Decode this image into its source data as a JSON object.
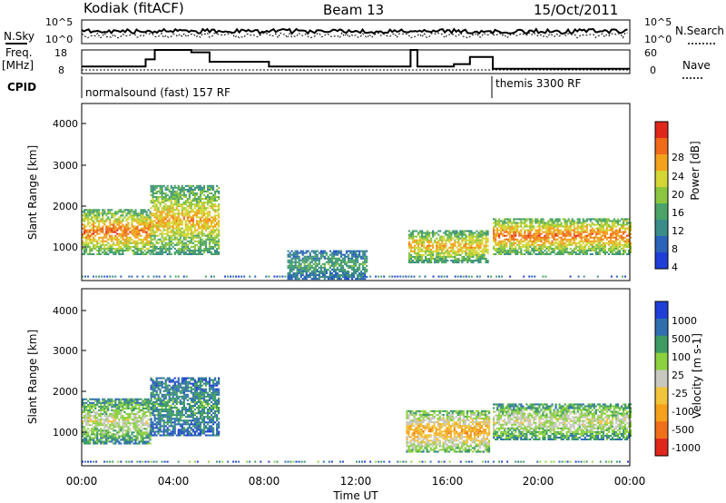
{
  "header": {
    "station": "Kodiak (fitACF)",
    "beam": "Beam 13",
    "date": "15/Oct/2011"
  },
  "nsky_panel": {
    "left_label": "N.Sky",
    "right_label": "N.Search",
    "left_ticks": [
      "10^5",
      "10^0"
    ],
    "right_ticks": [
      "10^5",
      "10^0"
    ]
  },
  "freq_panel": {
    "left_label_top": "Freq.",
    "left_label_bottom": "[MHz]",
    "left_ticks": [
      "18",
      "8"
    ],
    "right_label": "Nave",
    "right_ticks": [
      "60",
      "0"
    ]
  },
  "cpid": {
    "label": "CPID",
    "segment1": "normalsound (fast) 157 RF",
    "segment2": "themis 3300 RF"
  },
  "x_axis": {
    "title": "Time UT",
    "ticks": [
      "00:00",
      "04:00",
      "08:00",
      "12:00",
      "16:00",
      "20:00",
      "00:00"
    ]
  },
  "power_panel": {
    "ylabel": "Slant Range [km]",
    "yticks": [
      "4000",
      "3000",
      "2000",
      "1000"
    ],
    "colorbar_title": "Power [dB]",
    "colorbar_ticks": [
      "28",
      "24",
      "20",
      "16",
      "12",
      "8",
      "4"
    ],
    "colors": [
      "#1f3fd6",
      "#2a63b8",
      "#3a8c8a",
      "#4aa367",
      "#8cc63f",
      "#d4d635",
      "#f2a21c",
      "#f06a1a",
      "#e0271c"
    ]
  },
  "velocity_panel": {
    "ylabel": "Slant Range [km]",
    "yticks": [
      "4000",
      "3000",
      "2000",
      "1000"
    ],
    "colorbar_title": "Velocity [m s-1]",
    "colorbar_ticks": [
      "1000",
      "500",
      "100",
      "25",
      "-25",
      "-100",
      "-500",
      "-1000"
    ],
    "colors": [
      "#1f3fd6",
      "#2f6fae",
      "#3d9b63",
      "#8cd13f",
      "#c8c8c0",
      "#f2c43a",
      "#f5a11c",
      "#f0701a",
      "#e0271c"
    ]
  },
  "chart_data": {
    "type": "heatmap",
    "title": "Kodiak (fitACF) Beam 13 15/Oct/2011",
    "xlabel": "Time UT",
    "ylabel": "Slant Range [km]",
    "xlim_hours": [
      0,
      24
    ],
    "ylim_km": [
      180,
      4500
    ],
    "colorbar_power_db": [
      4,
      8,
      12,
      16,
      20,
      24,
      28
    ],
    "colorbar_velocity_ms": [
      1000,
      500,
      100,
      25,
      -25,
      -100,
      -500,
      -1000
    ],
    "cpid_segments": [
      {
        "label": "normalsound (fast) 157 RF",
        "start_hour": 0,
        "end_hour": 18
      },
      {
        "label": "themis 3300 RF",
        "start_hour": 18,
        "end_hour": 24
      }
    ],
    "frequency_mhz_steps": [
      {
        "start_hour": 0,
        "end_hour": 2.8,
        "value": 11
      },
      {
        "start_hour": 2.8,
        "end_hour": 3.2,
        "value": 14
      },
      {
        "start_hour": 3.2,
        "end_hour": 4.8,
        "value": 18
      },
      {
        "start_hour": 4.8,
        "end_hour": 5.6,
        "value": 17
      },
      {
        "start_hour": 5.6,
        "end_hour": 8.2,
        "value": 13
      },
      {
        "start_hour": 8.2,
        "end_hour": 14.4,
        "value": 11
      },
      {
        "start_hour": 14.4,
        "end_hour": 14.7,
        "value": 18
      },
      {
        "start_hour": 14.7,
        "end_hour": 16.3,
        "value": 11
      },
      {
        "start_hour": 16.3,
        "end_hour": 17.0,
        "value": 12
      },
      {
        "start_hour": 17.0,
        "end_hour": 18.0,
        "value": 15
      },
      {
        "start_hour": 18.0,
        "end_hour": 24.0,
        "value": 10
      }
    ],
    "echo_regions": [
      {
        "panel": "power",
        "start_hour": 0.0,
        "end_hour": 3.0,
        "range_min_km": 800,
        "range_max_km": 1900,
        "level": 7
      },
      {
        "panel": "power",
        "start_hour": 3.0,
        "end_hour": 6.0,
        "range_min_km": 800,
        "range_max_km": 2500,
        "level": 6
      },
      {
        "panel": "power",
        "start_hour": 9.0,
        "end_hour": 12.5,
        "range_min_km": 200,
        "range_max_km": 900,
        "level": 3
      },
      {
        "panel": "power",
        "start_hour": 14.3,
        "end_hour": 17.8,
        "range_min_km": 600,
        "range_max_km": 1400,
        "level": 6
      },
      {
        "panel": "power",
        "start_hour": 18.0,
        "end_hour": 24.0,
        "range_min_km": 800,
        "range_max_km": 1700,
        "level": 7
      },
      {
        "panel": "velocity",
        "start_hour": 0.0,
        "end_hour": 3.0,
        "range_min_km": 700,
        "range_max_km": 1800,
        "level": 4
      },
      {
        "panel": "velocity",
        "start_hour": 3.0,
        "end_hour": 6.0,
        "range_min_km": 900,
        "range_max_km": 2300,
        "level": 2
      },
      {
        "panel": "velocity",
        "start_hour": 14.2,
        "end_hour": 17.8,
        "range_min_km": 500,
        "range_max_km": 1500,
        "level": 6
      },
      {
        "panel": "velocity",
        "start_hour": 18.0,
        "end_hour": 24.0,
        "range_min_km": 800,
        "range_max_km": 1700,
        "level": 4
      }
    ]
  }
}
